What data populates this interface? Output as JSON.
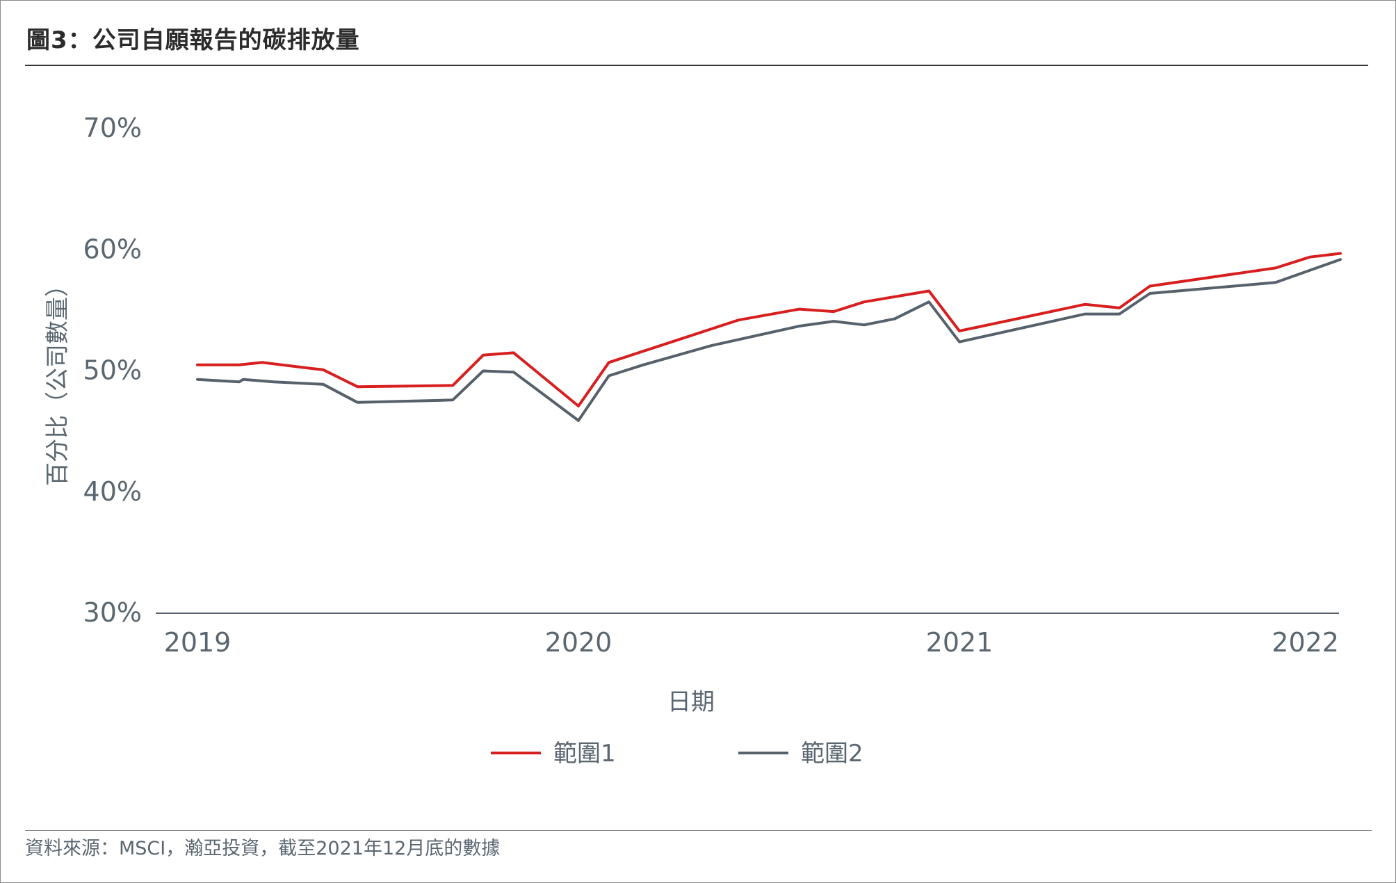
{
  "title": "圖3：公司自願報告的碳排放量",
  "source": "資料來源：MSCI，瀚亞投資，截至2021年12月底的數據",
  "colors": {
    "scope1": "#d71f1f",
    "scope2": "#56616b",
    "axis": "#56616b",
    "text": "#5b6770"
  },
  "chart_data": {
    "type": "line",
    "xlabel": "日期",
    "ylabel": "百分比（公司數量）",
    "xlim": [
      2019.0,
      2022.0
    ],
    "ylim": [
      30,
      70
    ],
    "x_ticks": [
      {
        "value": 2019,
        "label": "2019"
      },
      {
        "value": 2020,
        "label": "2020"
      },
      {
        "value": 2021,
        "label": "2021"
      },
      {
        "value": 2022,
        "label": "2022"
      }
    ],
    "y_ticks": [
      {
        "value": 30,
        "label": "30%"
      },
      {
        "value": 40,
        "label": "40%"
      },
      {
        "value": 50,
        "label": "50%"
      },
      {
        "value": 60,
        "label": "60%"
      },
      {
        "value": 70,
        "label": "70%"
      }
    ],
    "grid": false,
    "legend_position": "bottom-center",
    "series": [
      {
        "name": "範圍1",
        "color": "#d71f1f",
        "x": [
          2019.0,
          2019.11,
          2019.17,
          2019.3,
          2019.33,
          2019.42,
          2019.67,
          2019.75,
          2019.83,
          2020.0,
          2020.08,
          2020.42,
          2020.58,
          2020.67,
          2020.75,
          2020.92,
          2021.0,
          2021.33,
          2021.42,
          2021.5,
          2021.83,
          2021.92,
          2022.0
        ],
        "y": [
          50.5,
          50.5,
          50.7,
          50.2,
          50.1,
          48.7,
          48.8,
          51.3,
          51.5,
          47.1,
          50.7,
          54.2,
          55.1,
          54.9,
          55.7,
          56.6,
          53.3,
          55.5,
          55.2,
          57.0,
          58.5,
          59.4,
          59.7
        ]
      },
      {
        "name": "範圍2",
        "color": "#56616b",
        "x": [
          2019.0,
          2019.11,
          2019.12,
          2019.2,
          2019.33,
          2019.42,
          2019.67,
          2019.75,
          2019.83,
          2020.0,
          2020.08,
          2020.17,
          2020.35,
          2020.58,
          2020.67,
          2020.75,
          2020.83,
          2020.92,
          2021.0,
          2021.33,
          2021.42,
          2021.5,
          2021.83,
          2022.0
        ],
        "y": [
          49.3,
          49.1,
          49.3,
          49.1,
          48.9,
          47.4,
          47.6,
          50.0,
          49.9,
          45.9,
          49.6,
          50.5,
          52.1,
          53.7,
          54.1,
          53.8,
          54.3,
          55.7,
          52.4,
          54.7,
          54.7,
          56.4,
          57.3,
          59.2
        ]
      }
    ]
  }
}
